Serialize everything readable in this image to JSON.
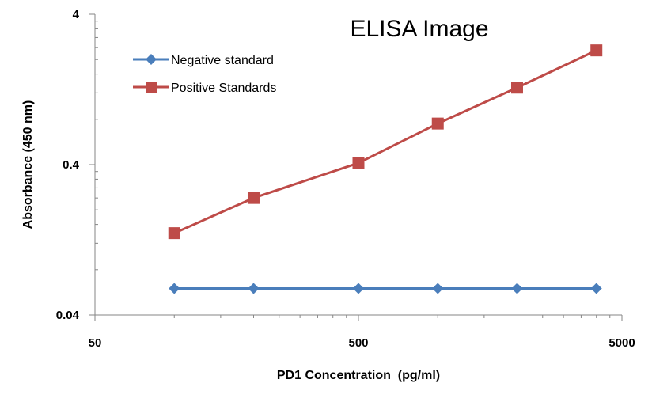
{
  "chart_data": {
    "type": "line",
    "title": "ELISA Image",
    "xlabel": "PD1 Concentration  (pg/ml)",
    "ylabel": "Absorbance (450 nm)",
    "x_scale": "log",
    "y_scale": "log",
    "xlim": [
      50,
      5000
    ],
    "ylim": [
      0.04,
      4
    ],
    "x_ticks": [
      "50",
      "500",
      "5000"
    ],
    "y_ticks": [
      "4",
      "0.4",
      "0.04"
    ],
    "grid": false,
    "legend_position": "top-left",
    "x": [
      100,
      200,
      500,
      1000,
      2000,
      4000
    ],
    "series": [
      {
        "name": "Negative standard",
        "color": "#4a7ebb",
        "marker": "diamond",
        "values": [
          0.06,
          0.06,
          0.06,
          0.06,
          0.06,
          0.06
        ]
      },
      {
        "name": "Positive Standards",
        "color": "#be4b48",
        "marker": "square",
        "values": [
          0.14,
          0.24,
          0.41,
          0.75,
          1.3,
          2.3
        ]
      }
    ]
  }
}
